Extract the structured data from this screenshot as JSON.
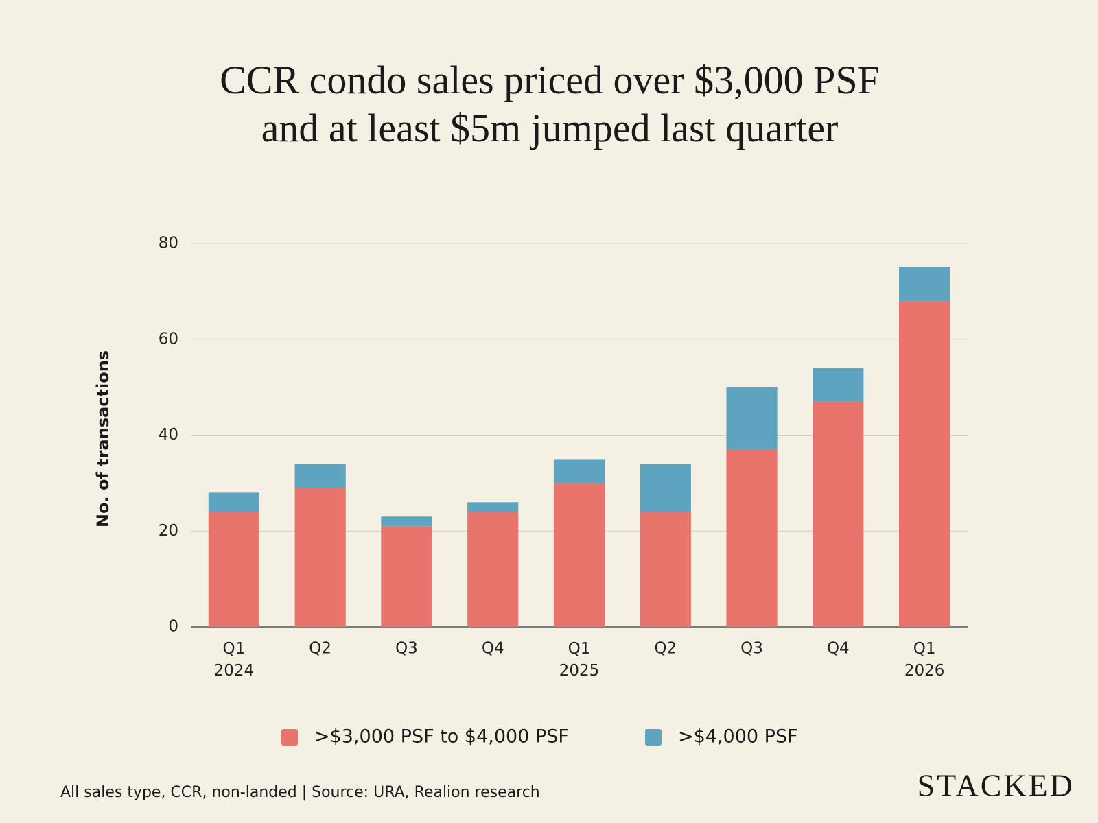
{
  "chart_data": {
    "type": "stacked_bar",
    "title": "CCR condo sales priced over $3,000 PSF\nand at least $5m jumped last quarter",
    "y_label": "No. of transactions",
    "categories": [
      "Q1\n2024",
      "Q2",
      "Q3",
      "Q4",
      "Q1\n2025",
      "Q2",
      "Q3",
      "Q4",
      "Q1\n2026"
    ],
    "series": [
      {
        "name": ">$3,000 PSF to $4,000 PSF",
        "color": "#e8746c",
        "values": [
          24,
          29,
          21,
          24,
          30,
          24,
          37,
          47,
          68
        ]
      },
      {
        "name": ">$4,000 PSF",
        "color": "#5ea3c0",
        "values": [
          4,
          5,
          2,
          2,
          5,
          10,
          13,
          7,
          7
        ]
      }
    ],
    "ylim": [
      0,
      80
    ],
    "yticks": [
      0,
      20,
      40,
      60,
      80
    ],
    "grid": true,
    "legend": "bottom",
    "note": "All sales type, CCR, non-landed | Source: URA, Realion research",
    "logo": "STACKED"
  }
}
